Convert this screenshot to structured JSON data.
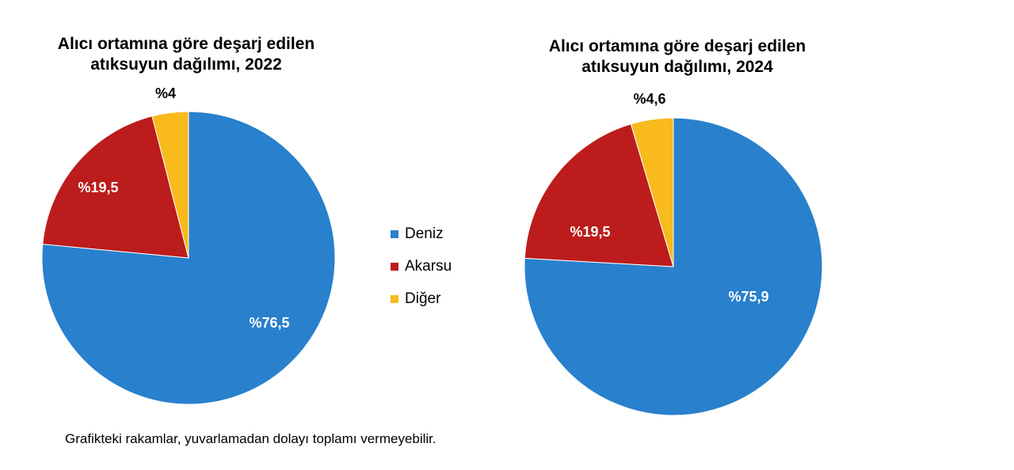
{
  "chart_data": [
    {
      "type": "pie",
      "title_lines": [
        "Alıcı ortamına göre deşarj edilen",
        "atıksuyun dağılımı, 2022"
      ],
      "categories": [
        "Deniz",
        "Akarsu",
        "Diğer"
      ],
      "values": [
        76.5,
        19.5,
        4
      ],
      "labels": [
        "%76,5",
        "%19,5",
        "%4"
      ]
    },
    {
      "type": "pie",
      "title_lines": [
        "Alıcı ortamına göre deşarj edilen",
        "atıksuyun dağılımı, 2024"
      ],
      "categories": [
        "Deniz",
        "Akarsu",
        "Diğer"
      ],
      "values": [
        75.9,
        19.5,
        4.6
      ],
      "labels": [
        "%75,9",
        "%19,5",
        "%4,6"
      ]
    }
  ],
  "legend": [
    {
      "label": "Deniz",
      "color": "#2980CC"
    },
    {
      "label": "Akarsu",
      "color": "#BC1C1C"
    },
    {
      "label": "Diğer",
      "color": "#F8BA1C"
    }
  ],
  "footnote": "Grafikteki rakamlar, yuvarlamadan dolayı toplamı vermeyebilir."
}
